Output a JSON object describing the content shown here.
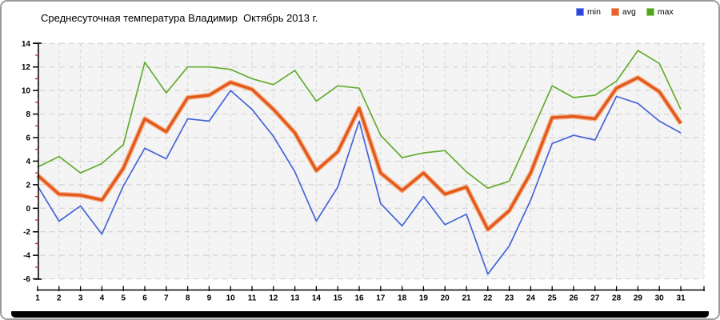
{
  "title": "Среднесуточная температура Владимир  Октябрь 2013 г.",
  "legend": [
    {
      "label": "min",
      "color": "#2d46e0"
    },
    {
      "label": "avg",
      "color": "#e8622a"
    },
    {
      "label": "max",
      "color": "#4fa51a"
    }
  ],
  "chart_data": {
    "type": "line",
    "title": "Среднесуточная температура Владимир  Октябрь 2013 г.",
    "xlabel": "",
    "ylabel": "",
    "x": [
      1,
      2,
      3,
      4,
      5,
      6,
      7,
      8,
      9,
      10,
      11,
      12,
      13,
      14,
      15,
      16,
      17,
      18,
      19,
      20,
      21,
      22,
      23,
      24,
      25,
      26,
      27,
      28,
      29,
      30,
      31
    ],
    "series": [
      {
        "name": "min",
        "color": "#4565d8",
        "values": [
          1.9,
          -1.1,
          0.2,
          -2.2,
          1.9,
          5.1,
          4.2,
          7.6,
          7.4,
          10.0,
          8.4,
          6.1,
          3.1,
          -1.1,
          1.8,
          7.4,
          0.4,
          -1.5,
          1.0,
          -1.4,
          -0.5,
          -5.6,
          -3.2,
          0.7,
          5.5,
          6.2,
          5.8,
          9.5,
          8.9,
          7.4,
          6.4
        ]
      },
      {
        "name": "avg",
        "color": "#e2571b",
        "halo_color": "#f5ae82",
        "values": [
          2.8,
          1.2,
          1.1,
          0.7,
          3.4,
          7.6,
          6.5,
          9.4,
          9.6,
          10.7,
          10.1,
          8.4,
          6.4,
          3.2,
          4.8,
          8.5,
          3.0,
          1.5,
          3.0,
          1.2,
          1.8,
          -1.8,
          -0.2,
          3.0,
          7.7,
          7.8,
          7.6,
          10.2,
          11.1,
          9.9,
          7.2
        ]
      },
      {
        "name": "max",
        "color": "#63ac30",
        "values": [
          3.5,
          4.4,
          3.0,
          3.8,
          5.4,
          12.4,
          9.8,
          12.0,
          12.0,
          11.8,
          11.0,
          10.5,
          11.7,
          9.1,
          10.4,
          10.2,
          6.2,
          4.3,
          4.7,
          4.9,
          3.1,
          1.7,
          2.3,
          6.3,
          10.4,
          9.4,
          9.6,
          10.8,
          13.4,
          12.3,
          8.4
        ]
      }
    ],
    "ylim": [
      -6,
      14
    ],
    "ytick_step": 2,
    "grid": true,
    "legend_position": "top-right",
    "plot_background": "#f4f4f4",
    "gridline_color": "#cdcdcd",
    "axis_color": "#000000",
    "minor_tick_color": "#cc2222"
  },
  "axes": {
    "y_ticks": [
      14,
      12,
      10,
      8,
      6,
      4,
      2,
      0,
      -2,
      -4,
      -6
    ],
    "y_tick_labels": [
      "14",
      "12",
      "10",
      "8",
      "6",
      "4",
      "2",
      "0",
      "-2",
      "-4",
      "-6"
    ],
    "x_tick_labels": [
      "1",
      "2",
      "3",
      "4",
      "5",
      "6",
      "7",
      "8",
      "9",
      "10",
      "11",
      "12",
      "13",
      "14",
      "15",
      "16",
      "17",
      "18",
      "19",
      "20",
      "21",
      "22",
      "23",
      "24",
      "25",
      "26",
      "27",
      "28",
      "29",
      "30",
      "31"
    ]
  }
}
